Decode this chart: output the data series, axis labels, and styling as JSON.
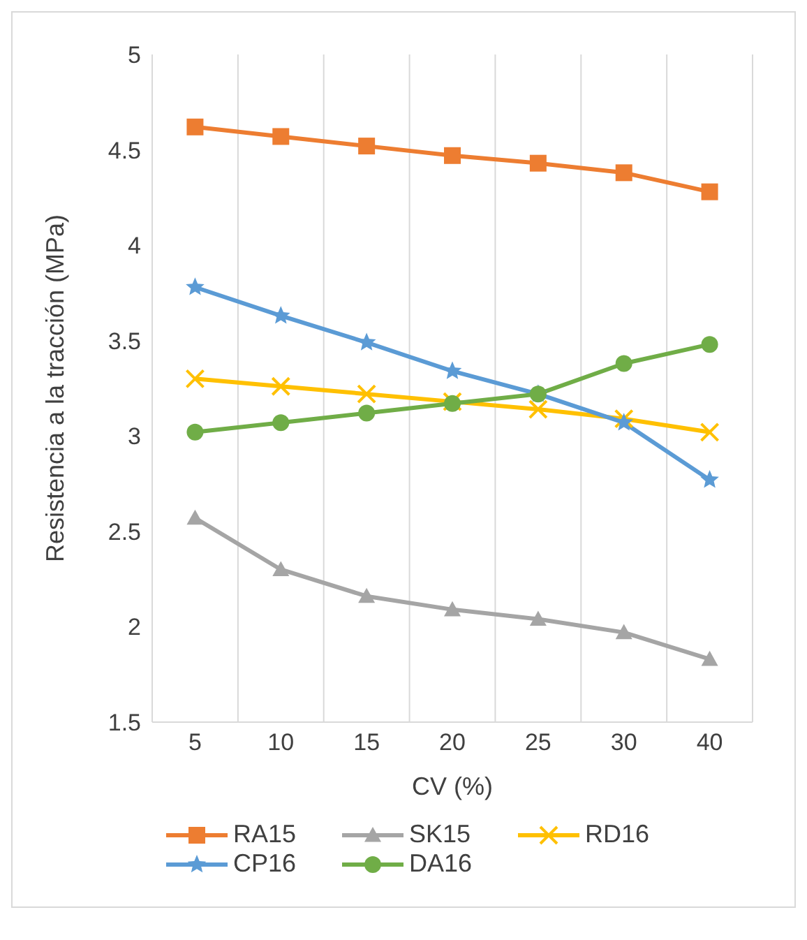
{
  "chart_data": {
    "type": "line",
    "xlabel": "CV (%)",
    "ylabel": "Resistencia a la tracción (MPa)",
    "categories": [
      "5",
      "10",
      "15",
      "20",
      "25",
      "30",
      "40"
    ],
    "series": [
      {
        "name": "RA15",
        "color": "#ed7d31",
        "marker": "square",
        "values": [
          4.62,
          4.57,
          4.52,
          4.47,
          4.43,
          4.38,
          4.28
        ]
      },
      {
        "name": "SK15",
        "color": "#a5a5a5",
        "marker": "triangle",
        "values": [
          2.57,
          2.3,
          2.16,
          2.09,
          2.04,
          1.97,
          1.83
        ]
      },
      {
        "name": "RD16",
        "color": "#ffc000",
        "marker": "cross",
        "values": [
          3.3,
          3.26,
          3.22,
          3.18,
          3.14,
          3.09,
          3.02
        ]
      },
      {
        "name": "CP16",
        "color": "#5b9bd5",
        "marker": "star",
        "values": [
          3.78,
          3.63,
          3.49,
          3.34,
          3.22,
          3.07,
          2.77
        ]
      },
      {
        "name": "DA16",
        "color": "#70ad47",
        "marker": "circle",
        "values": [
          3.02,
          3.07,
          3.12,
          3.17,
          3.22,
          3.38,
          3.48
        ]
      }
    ],
    "ylim": [
      1.5,
      5
    ],
    "yticks": [
      1.5,
      2,
      2.5,
      3,
      3.5,
      4,
      4.5,
      5
    ],
    "grid": "x",
    "legend": "bottom"
  }
}
